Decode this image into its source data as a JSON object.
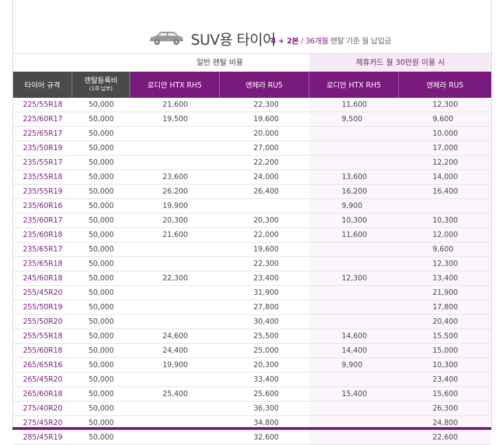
{
  "header": {
    "title": "SUV용 타이어",
    "subtitle_accent": "4 + 2본",
    "subtitle_sep": " / ",
    "subtitle_num": "36개월",
    "subtitle_rest": " 렌탈 기준 월 납입금"
  },
  "groups": {
    "general": "일반 렌탈 비용",
    "card": "제휴카드 월 30만원 이용 시"
  },
  "columns": {
    "size": "타이어 규격",
    "reg_line1": "렌탈등록비",
    "reg_line2": "(1회 납부)",
    "g1": "로디안 HTX RH5",
    "g2": "엔페라 RU5",
    "c1": "로디안 HTX RH5",
    "c2": "엔페라 RU5"
  },
  "colors": {
    "accent": "#7b1a7e",
    "header_dark": "#4a4a4a",
    "card_group_bg": "#f5eaf5"
  },
  "rows": [
    {
      "size": "225/55R18",
      "reg": "50,000",
      "g1": "21,600",
      "g2": "22,300",
      "c1": "11,600",
      "c2": "12,300"
    },
    {
      "size": "225/60R17",
      "reg": "50,000",
      "g1": "19,500",
      "g2": "19,600",
      "c1": "9,500",
      "c2": "9,600"
    },
    {
      "size": "225/65R17",
      "reg": "50,000",
      "g1": "",
      "g2": "20,000",
      "c1": "",
      "c2": "10,000"
    },
    {
      "size": "235/50R19",
      "reg": "50,000",
      "g1": "",
      "g2": "27,000",
      "c1": "",
      "c2": "17,000"
    },
    {
      "size": "235/55R17",
      "reg": "50,000",
      "g1": "",
      "g2": "22,200",
      "c1": "",
      "c2": "12,200"
    },
    {
      "size": "235/55R18",
      "reg": "50,000",
      "g1": "23,600",
      "g2": "24,000",
      "c1": "13,600",
      "c2": "14,000"
    },
    {
      "size": "235/55R19",
      "reg": "50,000",
      "g1": "26,200",
      "g2": "26,400",
      "c1": "16,200",
      "c2": "16,400"
    },
    {
      "size": "235/60R16",
      "reg": "50,000",
      "g1": "19,900",
      "g2": "",
      "c1": "9,900",
      "c2": ""
    },
    {
      "size": "235/60R17",
      "reg": "50,000",
      "g1": "20,300",
      "g2": "20,300",
      "c1": "10,300",
      "c2": "10,300"
    },
    {
      "size": "235/60R18",
      "reg": "50,000",
      "g1": "21,600",
      "g2": "22,000",
      "c1": "11,600",
      "c2": "12,000"
    },
    {
      "size": "235/65R17",
      "reg": "50,000",
      "g1": "",
      "g2": "19,600",
      "c1": "",
      "c2": "9,600"
    },
    {
      "size": "235/65R18",
      "reg": "50,000",
      "g1": "",
      "g2": "22,300",
      "c1": "",
      "c2": "12,300"
    },
    {
      "size": "245/60R18",
      "reg": "50,000",
      "g1": "22,300",
      "g2": "23,400",
      "c1": "12,300",
      "c2": "13,400"
    },
    {
      "size": "255/45R20",
      "reg": "50,000",
      "g1": "",
      "g2": "31,900",
      "c1": "",
      "c2": "21,900"
    },
    {
      "size": "255/50R19",
      "reg": "50,000",
      "g1": "",
      "g2": "27,800",
      "c1": "",
      "c2": "17,800"
    },
    {
      "size": "255/50R20",
      "reg": "50,000",
      "g1": "",
      "g2": "30,400",
      "c1": "",
      "c2": "20,400"
    },
    {
      "size": "255/55R18",
      "reg": "50,000",
      "g1": "24,600",
      "g2": "25,500",
      "c1": "14,600",
      "c2": "15,500"
    },
    {
      "size": "255/60R18",
      "reg": "50,000",
      "g1": "24,400",
      "g2": "25,000",
      "c1": "14,400",
      "c2": "15,000"
    },
    {
      "size": "265/65R16",
      "reg": "50,000",
      "g1": "19,900",
      "g2": "20,300",
      "c1": "9,900",
      "c2": "10,300"
    },
    {
      "size": "265/45R20",
      "reg": "50,000",
      "g1": "",
      "g2": "33,400",
      "c1": "",
      "c2": "23,400"
    },
    {
      "size": "265/60R18",
      "reg": "50,000",
      "g1": "25,400",
      "g2": "25,600",
      "c1": "15,400",
      "c2": "15,600"
    },
    {
      "size": "275/40R20",
      "reg": "50,000",
      "g1": "",
      "g2": "36,300",
      "c1": "",
      "c2": "26,300"
    },
    {
      "size": "275/45R20",
      "reg": "50,000",
      "g1": "",
      "g2": "34,800",
      "c1": "",
      "c2": "24,800"
    },
    {
      "size": "285/45R19",
      "reg": "50,000",
      "g1": "",
      "g2": "32,600",
      "c1": "",
      "c2": "22,600"
    }
  ]
}
